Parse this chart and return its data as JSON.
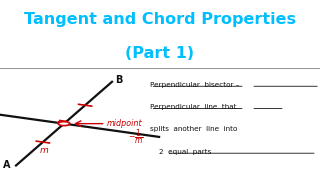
{
  "title_line1": "Tangent and Chord Properties",
  "title_line2": "(Part 1)",
  "title_color": "#00BFFF",
  "background_color": "#FFFFFF",
  "line_color": "#111111",
  "red_color": "#CC0000",
  "sep_color": "#999999",
  "label_A": "A",
  "label_B": "B",
  "label_m": "m",
  "label_midpoint": "midpoint",
  "text_lines": [
    "Perpendicular  bisector –",
    "Perpendicular  line  that",
    "splits  another  line  into",
    "    2  equal  parts"
  ],
  "figsize": [
    3.2,
    1.8
  ],
  "dpi": 100
}
